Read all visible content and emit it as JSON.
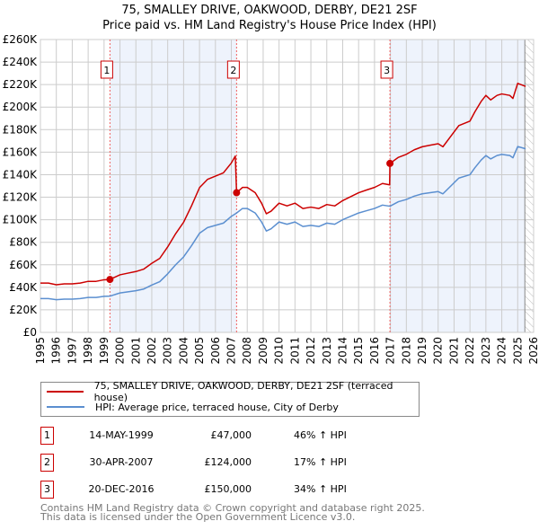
{
  "chart_data": {
    "type": "line",
    "title": "75, SMALLEY DRIVE, OAKWOOD, DERBY, DE21 2SF",
    "subtitle": "Price paid vs. HM Land Registry's House Price Index (HPI)",
    "xlim": [
      1995,
      2026
    ],
    "ylim": [
      0,
      260000
    ],
    "x_ticks": [
      "1995",
      "1996",
      "1997",
      "1998",
      "1999",
      "2000",
      "2001",
      "2002",
      "2003",
      "2004",
      "2005",
      "2006",
      "2007",
      "2008",
      "2009",
      "2010",
      "2011",
      "2012",
      "2013",
      "2014",
      "2015",
      "2016",
      "2017",
      "2018",
      "2019",
      "2020",
      "2021",
      "2022",
      "2023",
      "2024",
      "2025",
      "2026"
    ],
    "y_ticks": [
      {
        "v": 0,
        "label": "£0"
      },
      {
        "v": 20000,
        "label": "£20K"
      },
      {
        "v": 40000,
        "label": "£40K"
      },
      {
        "v": 60000,
        "label": "£60K"
      },
      {
        "v": 80000,
        "label": "£80K"
      },
      {
        "v": 100000,
        "label": "£100K"
      },
      {
        "v": 120000,
        "label": "£120K"
      },
      {
        "v": 140000,
        "label": "£140K"
      },
      {
        "v": 160000,
        "label": "£160K"
      },
      {
        "v": 180000,
        "label": "£180K"
      },
      {
        "v": 200000,
        "label": "£200K"
      },
      {
        "v": 220000,
        "label": "£220K"
      },
      {
        "v": 240000,
        "label": "£240K"
      },
      {
        "v": 260000,
        "label": "£260K"
      }
    ],
    "grid": true,
    "shaded_ranges": [
      [
        1999.37,
        2007.33
      ],
      [
        2016.97,
        2025.45
      ]
    ],
    "forecast_hatch_from": 2025.45,
    "series": [
      {
        "name": "75, SMALLEY DRIVE, OAKWOOD, DERBY, DE21 2SF (terraced house)",
        "color": "#cc0000",
        "points": [
          [
            1995,
            43800
          ],
          [
            1995.5,
            43800
          ],
          [
            1996,
            42300
          ],
          [
            1996.5,
            43100
          ],
          [
            1997,
            43100
          ],
          [
            1997.5,
            43800
          ],
          [
            1998,
            45300
          ],
          [
            1998.5,
            45300
          ],
          [
            1999,
            46700
          ],
          [
            1999.37,
            47000
          ],
          [
            2000,
            51100
          ],
          [
            2000.5,
            52600
          ],
          [
            2001,
            54000
          ],
          [
            2001.5,
            56200
          ],
          [
            2002,
            61300
          ],
          [
            2002.5,
            65700
          ],
          [
            2003,
            75900
          ],
          [
            2003.5,
            87600
          ],
          [
            2004,
            97800
          ],
          [
            2004.5,
            112400
          ],
          [
            2005,
            128500
          ],
          [
            2005.5,
            135800
          ],
          [
            2006,
            138700
          ],
          [
            2006.5,
            141600
          ],
          [
            2007,
            150400
          ],
          [
            2007.25,
            156500
          ],
          [
            2007.33,
            124000
          ],
          [
            2007.7,
            128700
          ],
          [
            2008,
            128700
          ],
          [
            2008.5,
            124000
          ],
          [
            2008.9,
            114700
          ],
          [
            2009.2,
            105300
          ],
          [
            2009.5,
            107600
          ],
          [
            2010,
            114700
          ],
          [
            2010.5,
            112300
          ],
          [
            2011,
            114700
          ],
          [
            2011.5,
            110000
          ],
          [
            2012,
            111200
          ],
          [
            2012.5,
            110000
          ],
          [
            2013,
            113500
          ],
          [
            2013.5,
            112300
          ],
          [
            2014,
            117000
          ],
          [
            2014.5,
            120500
          ],
          [
            2015,
            124000
          ],
          [
            2015.5,
            126400
          ],
          [
            2016,
            128700
          ],
          [
            2016.5,
            132200
          ],
          [
            2016.95,
            131000
          ],
          [
            2016.97,
            150000
          ],
          [
            2017.5,
            155400
          ],
          [
            2018,
            158100
          ],
          [
            2018.5,
            162100
          ],
          [
            2019,
            164800
          ],
          [
            2019.5,
            166200
          ],
          [
            2020,
            167500
          ],
          [
            2020.3,
            164800
          ],
          [
            2020.8,
            174200
          ],
          [
            2021.3,
            183600
          ],
          [
            2022,
            187600
          ],
          [
            2022.3,
            195600
          ],
          [
            2022.7,
            205000
          ],
          [
            2023,
            210400
          ],
          [
            2023.3,
            206400
          ],
          [
            2023.7,
            210400
          ],
          [
            2024,
            211700
          ],
          [
            2024.5,
            210400
          ],
          [
            2024.7,
            207700
          ],
          [
            2025,
            221100
          ],
          [
            2025.5,
            218400
          ]
        ]
      },
      {
        "name": "HPI: Average price, terraced house, City of Derby",
        "color": "#5b8fd0",
        "points": [
          [
            1995,
            30000
          ],
          [
            1995.5,
            30000
          ],
          [
            1996,
            29000
          ],
          [
            1996.5,
            29500
          ],
          [
            1997,
            29500
          ],
          [
            1997.5,
            30000
          ],
          [
            1998,
            31000
          ],
          [
            1998.5,
            31000
          ],
          [
            1999,
            32000
          ],
          [
            1999.37,
            32200
          ],
          [
            2000,
            35000
          ],
          [
            2000.5,
            36000
          ],
          [
            2001,
            37000
          ],
          [
            2001.5,
            38500
          ],
          [
            2002,
            42000
          ],
          [
            2002.5,
            45000
          ],
          [
            2003,
            52000
          ],
          [
            2003.5,
            60000
          ],
          [
            2004,
            67000
          ],
          [
            2004.5,
            77000
          ],
          [
            2005,
            88000
          ],
          [
            2005.5,
            93000
          ],
          [
            2006,
            95000
          ],
          [
            2006.5,
            97000
          ],
          [
            2007,
            103000
          ],
          [
            2007.33,
            106000
          ],
          [
            2007.7,
            110000
          ],
          [
            2008,
            110000
          ],
          [
            2008.5,
            106000
          ],
          [
            2008.9,
            98000
          ],
          [
            2009.2,
            90000
          ],
          [
            2009.5,
            92000
          ],
          [
            2010,
            98000
          ],
          [
            2010.5,
            96000
          ],
          [
            2011,
            98000
          ],
          [
            2011.5,
            94000
          ],
          [
            2012,
            95000
          ],
          [
            2012.5,
            94000
          ],
          [
            2013,
            97000
          ],
          [
            2013.5,
            96000
          ],
          [
            2014,
            100000
          ],
          [
            2014.5,
            103000
          ],
          [
            2015,
            106000
          ],
          [
            2015.5,
            108000
          ],
          [
            2016,
            110000
          ],
          [
            2016.5,
            113000
          ],
          [
            2016.97,
            112000
          ],
          [
            2017.5,
            116000
          ],
          [
            2018,
            118000
          ],
          [
            2018.5,
            121000
          ],
          [
            2019,
            123000
          ],
          [
            2019.5,
            124000
          ],
          [
            2020,
            125000
          ],
          [
            2020.3,
            123000
          ],
          [
            2020.8,
            130000
          ],
          [
            2021.3,
            137000
          ],
          [
            2022,
            140000
          ],
          [
            2022.3,
            146000
          ],
          [
            2022.7,
            153000
          ],
          [
            2023,
            157000
          ],
          [
            2023.3,
            154000
          ],
          [
            2023.7,
            157000
          ],
          [
            2024,
            158000
          ],
          [
            2024.5,
            157000
          ],
          [
            2024.7,
            155000
          ],
          [
            2025,
            165000
          ],
          [
            2025.5,
            163000
          ]
        ]
      }
    ],
    "sales": [
      {
        "label": "1",
        "x": 1999.37,
        "y": 47000
      },
      {
        "label": "2",
        "x": 2007.33,
        "y": 124000
      },
      {
        "label": "3",
        "x": 2016.97,
        "y": 150000
      }
    ],
    "legend": "below"
  },
  "legend": {
    "property": "75, SMALLEY DRIVE, OAKWOOD, DERBY, DE21 2SF (terraced house)",
    "hpi": "HPI: Average price, terraced house, City of Derby"
  },
  "table": [
    {
      "num": "1",
      "date": "14-MAY-1999",
      "price": "£47,000",
      "hpi": "46% ↑ HPI"
    },
    {
      "num": "2",
      "date": "30-APR-2007",
      "price": "£124,000",
      "hpi": "17% ↑ HPI"
    },
    {
      "num": "3",
      "date": "20-DEC-2016",
      "price": "£150,000",
      "hpi": "34% ↑ HPI"
    }
  ],
  "footer": {
    "line1": "Contains HM Land Registry data © Crown copyright and database right 2025.",
    "line2": "This data is licensed under the Open Government Licence v3.0."
  }
}
